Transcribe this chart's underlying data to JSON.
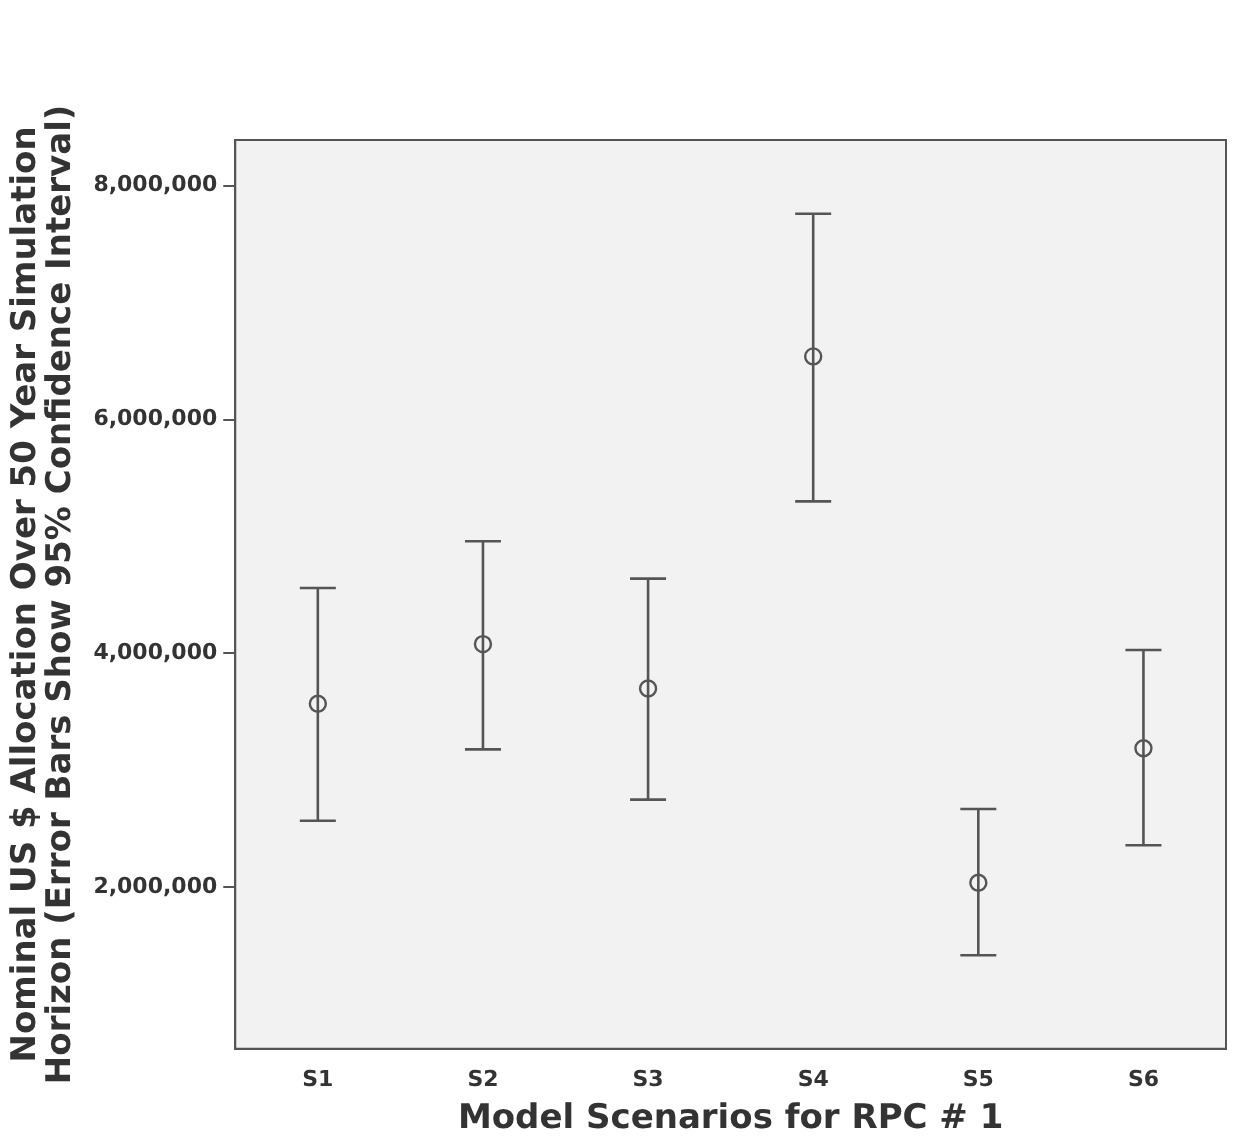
{
  "chart_data": {
    "type": "scatter",
    "xlabel": "Model Scenarios for RPC # 1",
    "ylabel": "Nominal US $ Allocation Over 50 Year Simulation Horizon (Error Bars Show 95% Confidence Interval)",
    "categories": [
      "S1",
      "S2",
      "S3",
      "S4",
      "S5",
      "S6"
    ],
    "values": [
      3570000,
      4080000,
      3700000,
      6540000,
      2040000,
      3190000
    ],
    "errors": [
      [
        2570000,
        4560000
      ],
      [
        3180000,
        4960000
      ],
      [
        2750000,
        4640000
      ],
      [
        5300000,
        7760000
      ],
      [
        1420000,
        2670000
      ],
      [
        2360000,
        4030000
      ]
    ],
    "color": "#555555",
    "marker": "circle",
    "grid": false,
    "legend": false,
    "ylim": [
      620000,
      8390000
    ],
    "yticks": [
      {
        "value": 2000000,
        "label": "2,000,000"
      },
      {
        "value": 4000000,
        "label": "4,000,000"
      },
      {
        "value": 6000000,
        "label": "6,000,000"
      },
      {
        "value": 8000000,
        "label": "8,000,000"
      }
    ]
  }
}
